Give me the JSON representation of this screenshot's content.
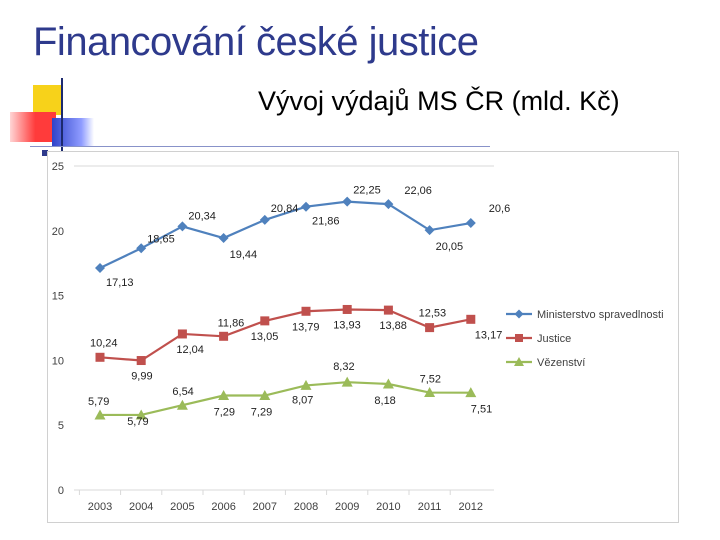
{
  "slide": {
    "title": "Financování české justice"
  },
  "chart_data": {
    "type": "line",
    "title": "Vývoj výdajů MS ČR (mld. Kč)",
    "categories": [
      "2003",
      "2004",
      "2005",
      "2006",
      "2007",
      "2008",
      "2009",
      "2010",
      "2011",
      "2012"
    ],
    "ylim": [
      0,
      25
    ],
    "yticks": [
      "0",
      "5",
      "10",
      "15",
      "20",
      "25"
    ],
    "grid": "top-line-only",
    "legend_position": "right",
    "series": [
      {
        "name": "Ministerstvo spravedlnosti",
        "color": "#4f81bd",
        "marker": "diamond",
        "values": [
          17.13,
          18.65,
          20.34,
          19.44,
          20.84,
          21.86,
          22.25,
          22.06,
          20.05,
          20.6
        ],
        "labels": [
          "17,13",
          "18,65",
          "20,34",
          "19,44",
          "20,84",
          "21,86",
          "22,25",
          "22,06",
          "20,05",
          "20,6"
        ]
      },
      {
        "name": "Justice",
        "color": "#c0504d",
        "marker": "square",
        "values": [
          10.24,
          9.99,
          12.04,
          11.86,
          13.05,
          13.79,
          13.93,
          13.88,
          12.53,
          13.17
        ],
        "labels": [
          "10,24",
          "9,99",
          "12,04",
          "11,86",
          "13,05",
          "13,79",
          "13,93",
          "13,88",
          "12,53",
          "13,17"
        ]
      },
      {
        "name": "Vězenství",
        "color": "#9bbb59",
        "marker": "triangle",
        "values": [
          5.79,
          5.79,
          6.54,
          7.29,
          7.29,
          8.07,
          8.32,
          8.18,
          7.52,
          7.51
        ],
        "labels": [
          "5,79",
          "5,79",
          "6,54",
          "7,29",
          "7,29",
          "8,07",
          "8,32",
          "8,18",
          "7,52",
          "7,51"
        ]
      }
    ]
  }
}
